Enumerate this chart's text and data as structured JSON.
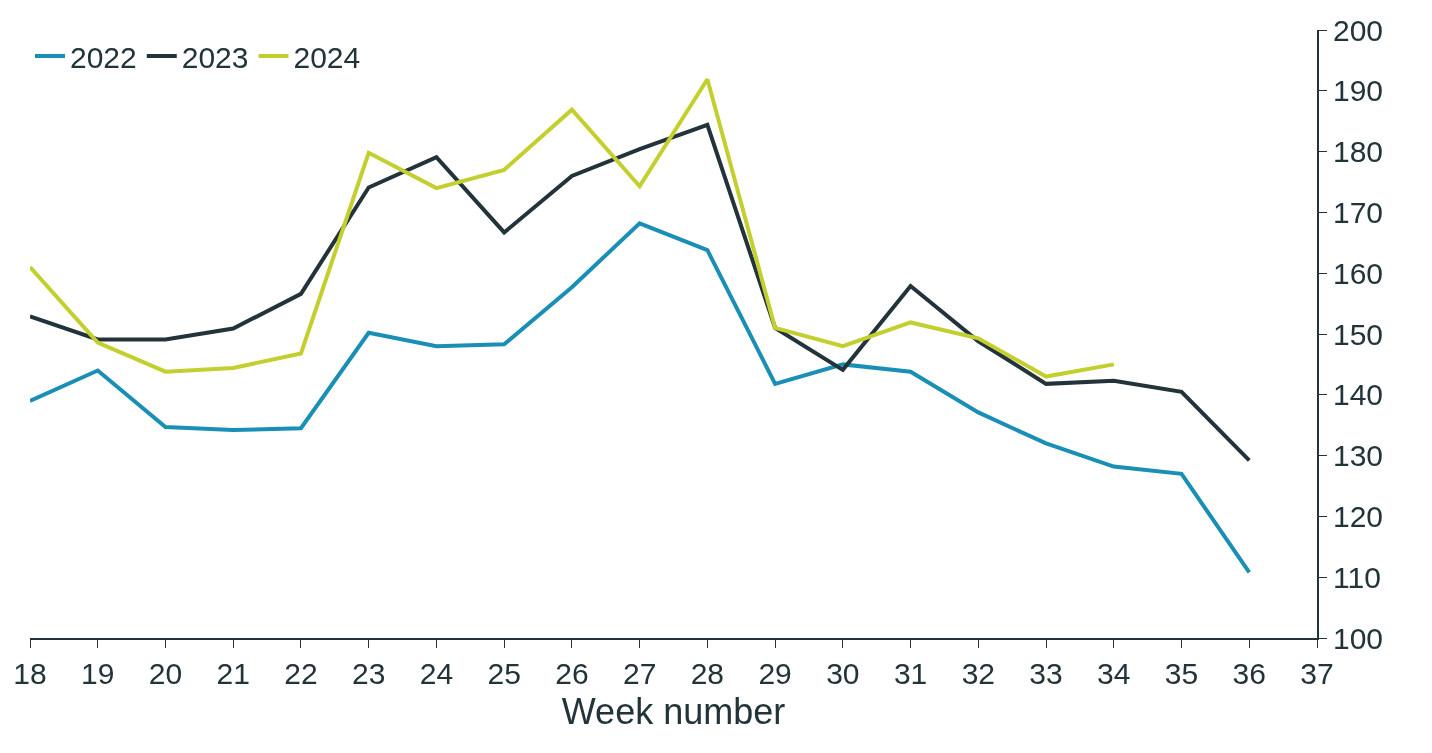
{
  "chart_data": {
    "type": "line",
    "xlabel": "Week number",
    "x": [
      18,
      19,
      20,
      21,
      22,
      23,
      24,
      25,
      26,
      27,
      28,
      29,
      30,
      31,
      32,
      33,
      34,
      35,
      36
    ],
    "series": [
      {
        "name": "2022",
        "color": "#1a8fb5",
        "values": [
          139,
          144,
          134.7,
          134.2,
          134.5,
          150.2,
          148,
          148.3,
          157.7,
          168.2,
          163.8,
          141.8,
          145,
          143.8,
          137.1,
          132,
          128.2,
          127,
          110.8
        ]
      },
      {
        "name": "2023",
        "color": "#22343a",
        "values": [
          152.9,
          149.1,
          149.1,
          150.9,
          156.6,
          174.1,
          179.1,
          166.7,
          176,
          180.4,
          184.4,
          151,
          144.1,
          157.9,
          148.8,
          141.8,
          142.3,
          140.5,
          129.2
        ]
      },
      {
        "name": "2024",
        "color": "#c3cf2e",
        "values": [
          161,
          148.6,
          143.8,
          144.4,
          146.8,
          179.8,
          174,
          177,
          186.9,
          174.3,
          191.9,
          151,
          148,
          151.9,
          149.3,
          143,
          145,
          null,
          null
        ]
      }
    ],
    "xlim": [
      18,
      37
    ],
    "xticks": [
      18,
      19,
      20,
      21,
      22,
      23,
      24,
      25,
      26,
      27,
      28,
      29,
      30,
      31,
      32,
      33,
      34,
      35,
      36,
      37
    ],
    "ylim": [
      100,
      200
    ],
    "yticks": [
      100,
      110,
      120,
      130,
      140,
      150,
      160,
      170,
      180,
      190,
      200
    ],
    "legend": "top left",
    "marker": "none",
    "line_style": "solid"
  }
}
